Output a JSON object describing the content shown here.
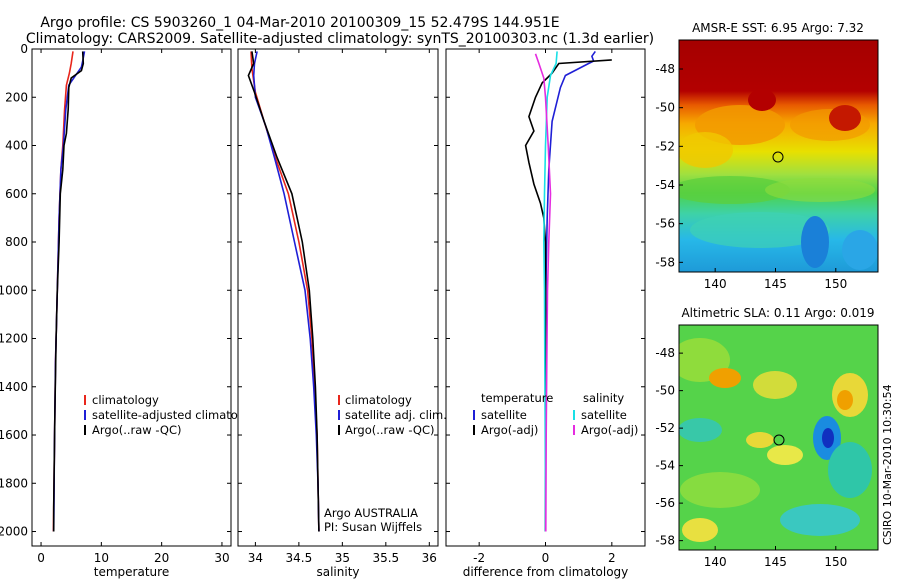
{
  "header": {
    "line1": "Argo profile: CS 5903260_1 04-Mar-2010 20100309_15 52.479S 144.951E",
    "line2": "Climatology: CARS2009. Satellite-adjusted climatology: synTS_20100303.nc (1.3d earlier)"
  },
  "side_label": "CSIRO 10-Mar-2010 10:30:54",
  "colors": {
    "red": "#e8261c",
    "blue": "#1f1fd6",
    "black": "#000000",
    "cyan": "#19e0e6",
    "magenta": "#e52ce0"
  },
  "chart_data": [
    {
      "type": "line",
      "id": "temperature",
      "title": "",
      "xlabel": "temperature",
      "ylabel": "",
      "xlim": [
        -1.5,
        31.5
      ],
      "ylim": [
        2060,
        0
      ],
      "xticks": [
        0,
        10,
        20,
        30
      ],
      "xticklabels": [
        "0",
        "10",
        "20",
        "30"
      ],
      "yticks": [
        0,
        200,
        400,
        600,
        800,
        1000,
        1200,
        1400,
        1600,
        1800,
        2000
      ],
      "yticklabels": [
        "0",
        "200",
        "400",
        "600",
        "800",
        "1000",
        "1200",
        "1400",
        "1600",
        "1800",
        "2000"
      ],
      "legend": [
        "climatology",
        "satellite-adjusted climatology",
        "Argo(..raw -QC)"
      ],
      "series": [
        {
          "name": "climatology",
          "color": "red",
          "points": [
            [
              5.3,
              10
            ],
            [
              5.0,
              60
            ],
            [
              4.7,
              100
            ],
            [
              4.2,
              150
            ],
            [
              3.9,
              250
            ],
            [
              3.6,
              400
            ],
            [
              3.3,
              500
            ],
            [
              3.0,
              700
            ],
            [
              2.8,
              900
            ],
            [
              2.6,
              1100
            ],
            [
              2.4,
              1300
            ],
            [
              2.3,
              1500
            ],
            [
              2.2,
              1700
            ],
            [
              2.1,
              1900
            ],
            [
              2.05,
              2000
            ]
          ]
        },
        {
          "name": "satellite-adjusted climatology",
          "color": "blue",
          "points": [
            [
              7.2,
              10
            ],
            [
              6.9,
              50
            ],
            [
              6.7,
              75
            ],
            [
              4.6,
              150
            ],
            [
              4.1,
              250
            ],
            [
              3.7,
              400
            ],
            [
              3.3,
              500
            ],
            [
              3.0,
              700
            ],
            [
              2.8,
              900
            ],
            [
              2.6,
              1100
            ],
            [
              2.4,
              1300
            ],
            [
              2.3,
              1500
            ],
            [
              2.2,
              1700
            ],
            [
              2.15,
              1900
            ],
            [
              2.1,
              2000
            ]
          ]
        },
        {
          "name": "Argo(..raw -QC)",
          "color": "black",
          "points": [
            [
              6.9,
              10
            ],
            [
              7.0,
              60
            ],
            [
              6.7,
              90
            ],
            [
              5.0,
              120
            ],
            [
              4.6,
              160
            ],
            [
              4.5,
              250
            ],
            [
              4.2,
              350
            ],
            [
              3.8,
              400
            ],
            [
              3.6,
              500
            ],
            [
              3.2,
              600
            ],
            [
              3.0,
              800
            ],
            [
              2.7,
              1000
            ],
            [
              2.5,
              1200
            ],
            [
              2.3,
              1500
            ],
            [
              2.2,
              1700
            ],
            [
              2.1,
              1900
            ],
            [
              2.1,
              2000
            ]
          ]
        }
      ]
    },
    {
      "type": "line",
      "id": "salinity",
      "title": "",
      "xlabel": "salinity",
      "xlim": [
        33.8,
        36.1
      ],
      "ylim": [
        2060,
        0
      ],
      "xticks": [
        34,
        34.5,
        35,
        35.5,
        36
      ],
      "xticklabels": [
        "34",
        "34.5",
        "35",
        "35.5",
        "36"
      ],
      "legend": [
        "climatology",
        "satellite adj. clim.",
        "Argo(..raw -QC)"
      ],
      "annotation": [
        "Argo AUSTRALIA",
        "PI: Susan Wijffels"
      ],
      "series": [
        {
          "name": "climatology",
          "color": "red",
          "points": [
            [
              33.95,
              10
            ],
            [
              33.96,
              80
            ],
            [
              34.0,
              180
            ],
            [
              34.1,
              300
            ],
            [
              34.23,
              450
            ],
            [
              34.38,
              600
            ],
            [
              34.5,
              800
            ],
            [
              34.6,
              1000
            ],
            [
              34.65,
              1200
            ],
            [
              34.68,
              1400
            ],
            [
              34.71,
              1600
            ],
            [
              34.72,
              1800
            ],
            [
              34.73,
              2000
            ]
          ]
        },
        {
          "name": "satellite adj. clim.",
          "color": "blue",
          "points": [
            [
              34.02,
              10
            ],
            [
              33.99,
              60
            ],
            [
              33.98,
              110
            ],
            [
              34.0,
              200
            ],
            [
              34.12,
              320
            ],
            [
              34.22,
              450
            ],
            [
              34.33,
              600
            ],
            [
              34.45,
              800
            ],
            [
              34.57,
              1000
            ],
            [
              34.63,
              1200
            ],
            [
              34.67,
              1400
            ],
            [
              34.7,
              1600
            ],
            [
              34.72,
              1800
            ],
            [
              34.73,
              2000
            ]
          ]
        },
        {
          "name": "Argo(..raw -QC)",
          "color": "black",
          "points": [
            [
              33.96,
              10
            ],
            [
              33.98,
              60
            ],
            [
              33.92,
              110
            ],
            [
              33.99,
              180
            ],
            [
              34.1,
              300
            ],
            [
              34.25,
              450
            ],
            [
              34.42,
              600
            ],
            [
              34.54,
              800
            ],
            [
              34.62,
              1000
            ],
            [
              34.66,
              1200
            ],
            [
              34.69,
              1400
            ],
            [
              34.71,
              1600
            ],
            [
              34.72,
              1800
            ],
            [
              34.73,
              2000
            ]
          ]
        }
      ]
    },
    {
      "type": "line",
      "id": "difference",
      "title": "",
      "xlabel": "difference from climatology",
      "xlim": [
        -3,
        3
      ],
      "ylim": [
        2060,
        0
      ],
      "xticks": [
        -2,
        0,
        2
      ],
      "xticklabels": [
        "-2",
        "0",
        "2"
      ],
      "legend_titles": [
        "temperature",
        "salinity"
      ],
      "legend_left": [
        "satellite",
        "Argo(-adj)"
      ],
      "legend_right": [
        "satellite",
        "Argo(-adj)"
      ],
      "series": [
        {
          "name": "temperature satellite",
          "color": "blue",
          "points": [
            [
              1.5,
              10
            ],
            [
              1.4,
              30
            ],
            [
              1.45,
              50
            ],
            [
              1.3,
              60
            ],
            [
              0.6,
              110
            ],
            [
              0.45,
              160
            ],
            [
              0.2,
              300
            ],
            [
              0.1,
              500
            ],
            [
              0.05,
              700
            ],
            [
              0.02,
              900
            ],
            [
              0.0,
              1200
            ],
            [
              0.0,
              2000
            ]
          ]
        },
        {
          "name": "temperature Argo(-adj)",
          "color": "black",
          "points": [
            [
              2.0,
              45
            ],
            [
              0.4,
              60
            ],
            [
              0.2,
              100
            ],
            [
              0.05,
              120
            ],
            [
              -0.1,
              140
            ],
            [
              -0.3,
              200
            ],
            [
              -0.5,
              280
            ],
            [
              -0.35,
              340
            ],
            [
              -0.6,
              400
            ],
            [
              -0.5,
              470
            ],
            [
              -0.35,
              560
            ],
            [
              -0.15,
              640
            ],
            [
              -0.05,
              700
            ],
            [
              0.0,
              800
            ],
            [
              0.0,
              2000
            ]
          ]
        },
        {
          "name": "salinity satellite",
          "color": "cyan",
          "points": [
            [
              0.35,
              10
            ],
            [
              0.32,
              60
            ],
            [
              0.15,
              110
            ],
            [
              0.05,
              200
            ],
            [
              0.0,
              400
            ],
            [
              -0.03,
              600
            ],
            [
              -0.05,
              800
            ],
            [
              -0.03,
              1000
            ],
            [
              -0.02,
              1300
            ],
            [
              -0.01,
              1600
            ],
            [
              0.0,
              2000
            ]
          ]
        },
        {
          "name": "salinity Argo(-adj)",
          "color": "magenta",
          "points": [
            [
              -0.3,
              20
            ],
            [
              -0.2,
              60
            ],
            [
              -0.05,
              120
            ],
            [
              0.0,
              200
            ],
            [
              0.08,
              400
            ],
            [
              0.15,
              600
            ],
            [
              0.1,
              800
            ],
            [
              0.06,
              1000
            ],
            [
              0.04,
              1300
            ],
            [
              0.02,
              1600
            ],
            [
              0.01,
              2000
            ]
          ]
        }
      ]
    },
    {
      "type": "heatmap",
      "id": "sst-map",
      "title": "AMSR-E SST: 6.95 Argo: 7.32",
      "xlim": [
        137,
        153.5
      ],
      "ylim": [
        -58.5,
        -46.5
      ],
      "xticks": [
        140,
        145,
        150
      ],
      "xticklabels": [
        "140",
        "145",
        "150"
      ],
      "yticks": [
        -48,
        -50,
        -52,
        -54,
        -56,
        -58
      ],
      "yticklabels": [
        "-48",
        "-50",
        "-52",
        "-54",
        "-56",
        "-58"
      ],
      "marker": [
        145,
        -52.5
      ]
    },
    {
      "type": "heatmap",
      "id": "sla-map",
      "title": "Altimetric SLA: 0.11 Argo: 0.019",
      "xlim": [
        137,
        153.5
      ],
      "ylim": [
        -58.5,
        -46.5
      ],
      "xticks": [
        140,
        145,
        150
      ],
      "xticklabels": [
        "140",
        "145",
        "150"
      ],
      "yticks": [
        -48,
        -50,
        -52,
        -54,
        -56,
        -58
      ],
      "yticklabels": [
        "-48",
        "-50",
        "-52",
        "-54",
        "-56",
        "-58"
      ],
      "marker": [
        145,
        -52.5
      ]
    }
  ]
}
